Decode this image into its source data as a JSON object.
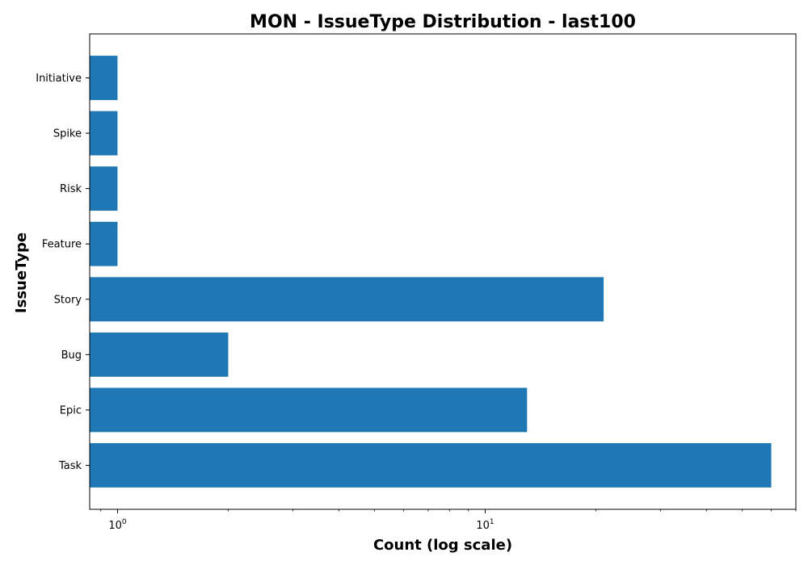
{
  "chart_data": {
    "type": "bar",
    "orientation": "horizontal",
    "title": "MON - IssueType Distribution - last100",
    "xlabel": "Count (log scale)",
    "ylabel": "IssueType",
    "x_scale": "log",
    "xlim": [
      0.84,
      70
    ],
    "x_ticks": [
      {
        "value": 1,
        "base": "10",
        "exp": "0"
      },
      {
        "value": 10,
        "base": "10",
        "exp": "1"
      }
    ],
    "categories": [
      "Task",
      "Epic",
      "Bug",
      "Story",
      "Feature",
      "Risk",
      "Spike",
      "Initiative"
    ],
    "values": [
      60,
      13,
      2,
      21,
      1,
      1,
      1,
      1
    ],
    "bar_color": "#1f77b4",
    "grid": false,
    "legend": "none"
  }
}
